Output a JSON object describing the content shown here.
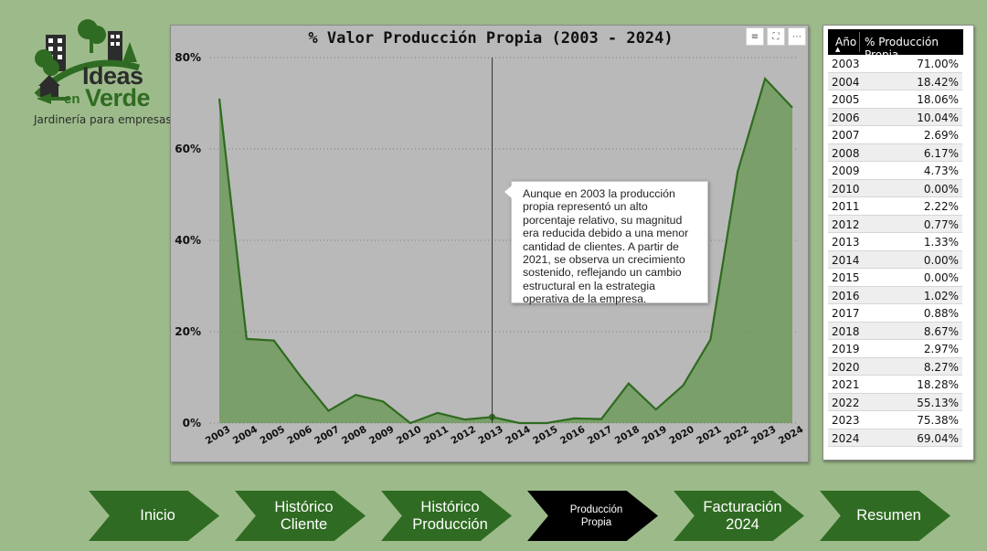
{
  "logo": {
    "line1": "Ideas",
    "small": "en",
    "line2": "Verde",
    "tagline": "Jardinería para empresas"
  },
  "chart": {
    "title": "% Valor Producción Propia (2003 - 2024)",
    "icons": [
      "filter-icon",
      "focus-mode-icon",
      "more-options-icon"
    ],
    "tooltip": "Aunque en 2003 la producción propia representó un alto porcentaje relativo, su magnitud era reducida debido a una menor cantidad de clientes. A partir de 2021, se observa un crecimiento sostenido, reflejando un cambio estructural en la estrategia operativa de la empresa.",
    "colors": {
      "line": "#2e6b1f",
      "area": "#6f9a5c",
      "background": "#b9b9b9"
    }
  },
  "chart_data": {
    "type": "area",
    "title": "% Valor Producción Propia (2003 - 2024)",
    "x": [
      "2003",
      "2004",
      "2005",
      "2006",
      "2007",
      "2008",
      "2009",
      "2010",
      "2011",
      "2012",
      "2013",
      "2014",
      "2015",
      "2016",
      "2017",
      "2018",
      "2019",
      "2020",
      "2021",
      "2022",
      "2023",
      "2024"
    ],
    "values": [
      71.0,
      18.42,
      18.06,
      10.04,
      2.69,
      6.17,
      4.73,
      0.0,
      2.22,
      0.77,
      1.33,
      0.0,
      0.0,
      1.02,
      0.88,
      8.67,
      2.97,
      8.27,
      18.28,
      55.13,
      75.38,
      69.04
    ],
    "ylim": [
      0,
      80
    ],
    "yticks": [
      "0%",
      "20%",
      "40%",
      "60%",
      "80%"
    ],
    "grid": true,
    "highlight": "2013"
  },
  "table": {
    "col1": "Año",
    "col2": "% Producción Propia",
    "rows": [
      {
        "year": "2003",
        "value": "71.00%"
      },
      {
        "year": "2004",
        "value": "18.42%"
      },
      {
        "year": "2005",
        "value": "18.06%"
      },
      {
        "year": "2006",
        "value": "10.04%"
      },
      {
        "year": "2007",
        "value": "2.69%"
      },
      {
        "year": "2008",
        "value": "6.17%"
      },
      {
        "year": "2009",
        "value": "4.73%"
      },
      {
        "year": "2010",
        "value": "0.00%"
      },
      {
        "year": "2011",
        "value": "2.22%"
      },
      {
        "year": "2012",
        "value": "0.77%"
      },
      {
        "year": "2013",
        "value": "1.33%"
      },
      {
        "year": "2014",
        "value": "0.00%"
      },
      {
        "year": "2015",
        "value": "0.00%"
      },
      {
        "year": "2016",
        "value": "1.02%"
      },
      {
        "year": "2017",
        "value": "0.88%"
      },
      {
        "year": "2018",
        "value": "8.67%"
      },
      {
        "year": "2019",
        "value": "2.97%"
      },
      {
        "year": "2020",
        "value": "8.27%"
      },
      {
        "year": "2021",
        "value": "18.28%"
      },
      {
        "year": "2022",
        "value": "55.13%"
      },
      {
        "year": "2023",
        "value": "75.38%"
      },
      {
        "year": "2024",
        "value": "69.04%"
      }
    ]
  },
  "nav": [
    {
      "label": "Inicio"
    },
    {
      "label": "Histórico\nCliente"
    },
    {
      "label": "Histórico\nProducción"
    },
    {
      "label": "Producción\nPropia"
    },
    {
      "label": "Facturación\n2024"
    },
    {
      "label": "Resumen"
    }
  ]
}
